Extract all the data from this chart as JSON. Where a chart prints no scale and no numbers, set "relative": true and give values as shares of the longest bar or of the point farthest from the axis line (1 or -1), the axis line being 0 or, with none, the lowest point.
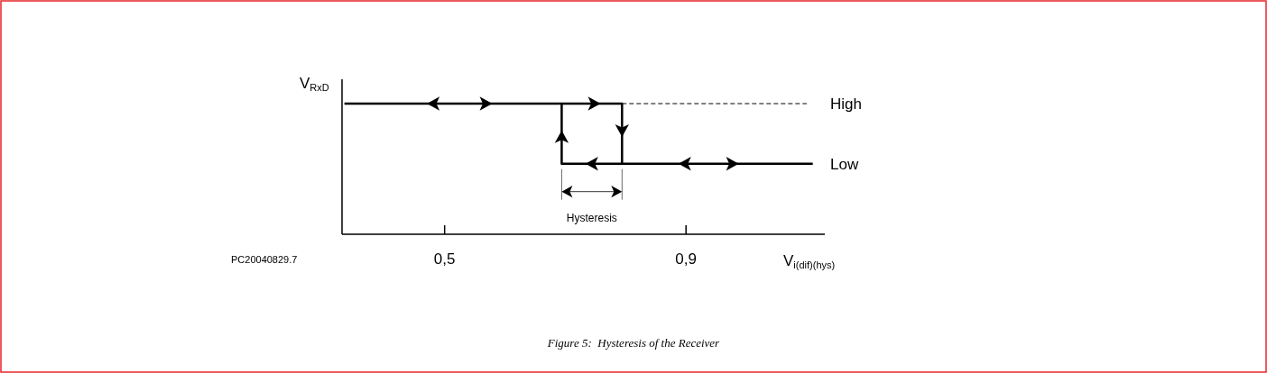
{
  "chart_data": {
    "type": "line",
    "relative": true,
    "xlabel": "V$_{i(dif)(hys)}$",
    "ylabel": "V$_{RxD}$",
    "xlim": [
      0.33,
      1.13
    ],
    "xticks": [
      {
        "value": 0.5,
        "label": "0,5"
      },
      {
        "value": 0.9,
        "label": "0,9"
      }
    ],
    "tick_labels": "x",
    "series": [
      {
        "color": "#000000",
        "line_style": "solid",
        "x": [
          0.334,
          0.794,
          0.794
        ],
        "values": [
          1,
          1,
          0.54
        ]
      },
      {
        "name": "High",
        "color": "#000000",
        "line_style": "dashed",
        "x": [
          0.794,
          1.1
        ],
        "values": [
          1,
          1
        ]
      },
      {
        "name": "Low",
        "color": "#000000",
        "line_style": "solid",
        "x": [
          0.694,
          0.694,
          1.11
        ],
        "values": [
          1,
          0.54,
          0.54
        ]
      }
    ],
    "annotations": [
      "Hysteresis",
      "PC20040829.7",
      "Figure 5:  Hysteresis of the Receiver"
    ]
  }
}
